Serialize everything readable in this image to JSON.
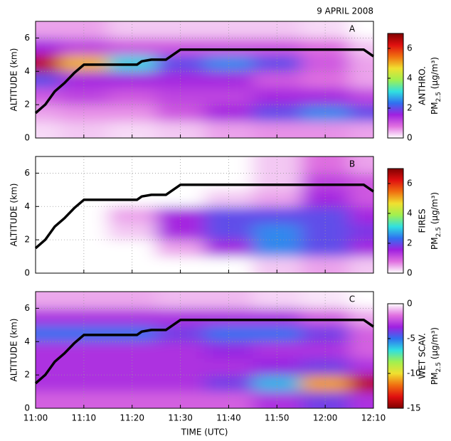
{
  "chart_data": [
    {
      "type": "heatmap",
      "title": "9 APRIL 2008",
      "panel_label": "A",
      "ylabel": "ALTITUDE (km)",
      "colorbar_title": "ANTHRO.",
      "colorbar_unit": [
        "PM",
        "2.5",
        " (μg/m³)"
      ],
      "clim": [
        0,
        7
      ],
      "cticks": [
        0,
        2,
        4,
        6
      ],
      "colormap": [
        "#ffffff",
        "#e070e0",
        "#a020e0",
        "#3070f0",
        "#30e0e0",
        "#a0f050",
        "#f0e030",
        "#f07010",
        "#e01010",
        "#800000"
      ],
      "xlim": [
        "11:00",
        "12:10"
      ],
      "xticks": [
        "11:00",
        "11:10",
        "11:20",
        "11:30",
        "11:40",
        "11:50",
        "12:00",
        "12:10"
      ],
      "ylim": [
        0,
        7
      ],
      "yticks": [
        0,
        2,
        4,
        6
      ],
      "grid": true,
      "z_times": [
        "11:00",
        "11:10",
        "11:20",
        "11:30",
        "11:40",
        "11:50",
        "12:00",
        "12:10"
      ],
      "z_altitudes": [
        0.5,
        1.5,
        2.5,
        3.5,
        4.5,
        5.5,
        6.5
      ],
      "z": [
        [
          0.2,
          0.3,
          0.2,
          0.3,
          0.5,
          0.6,
          0.6,
          0.5
        ],
        [
          0.5,
          0.6,
          0.6,
          1,
          1.5,
          2,
          2.5,
          2
        ],
        [
          1,
          1.2,
          1,
          1.2,
          1.2,
          1.5,
          1.5,
          1.2
        ],
        [
          2,
          1.5,
          1.5,
          1.5,
          1.5,
          1,
          0.8,
          0.5
        ],
        [
          6.5,
          5,
          3,
          2,
          2.5,
          2,
          1,
          0.5
        ],
        [
          1.5,
          1.2,
          1,
          1,
          1,
          1,
          0.8,
          0.3
        ],
        [
          0.5,
          0.5,
          0.3,
          0.3,
          0.3,
          0.3,
          0.2,
          0
        ]
      ],
      "x": [
        "11:00",
        "11:02",
        "11:04",
        "11:06",
        "11:08",
        "11:10",
        "11:21",
        "11:22",
        "11:24",
        "11:27",
        "11:30",
        "12:08",
        "12:10"
      ],
      "values": [
        1.5,
        2.0,
        2.8,
        3.3,
        3.9,
        4.4,
        4.4,
        4.6,
        4.7,
        4.7,
        5.3,
        5.3,
        4.9
      ],
      "color": "#000000"
    },
    {
      "type": "heatmap",
      "panel_label": "B",
      "ylabel": "ALTITUDE (km)",
      "colorbar_title": "FIRES",
      "colorbar_unit": [
        "PM",
        "2.5",
        " (μg/m³)"
      ],
      "clim": [
        0,
        7
      ],
      "cticks": [
        0,
        2,
        4,
        6
      ],
      "colormap": [
        "#ffffff",
        "#e070e0",
        "#a020e0",
        "#3070f0",
        "#30e0e0",
        "#a0f050",
        "#f0e030",
        "#f07010",
        "#e01010",
        "#800000"
      ],
      "xlim": [
        "11:00",
        "12:10"
      ],
      "xticks": [
        "11:00",
        "11:10",
        "11:20",
        "11:30",
        "11:40",
        "11:50",
        "12:00",
        "12:10"
      ],
      "ylim": [
        0,
        7
      ],
      "yticks": [
        0,
        2,
        4,
        6
      ],
      "grid": true,
      "z_times": [
        "11:00",
        "11:10",
        "11:20",
        "11:30",
        "11:40",
        "11:50",
        "12:00",
        "12:10"
      ],
      "z_altitudes": [
        0.5,
        1.5,
        2.5,
        3.5,
        4.5,
        5.5,
        6.5
      ],
      "z": [
        [
          0,
          0,
          0,
          0,
          0,
          0.3,
          0.5,
          0.3
        ],
        [
          0,
          0,
          0,
          0.5,
          1.5,
          2.5,
          2,
          1.5
        ],
        [
          0,
          0,
          0.3,
          1.5,
          2,
          2.5,
          2,
          1.8
        ],
        [
          0,
          0,
          0.5,
          1.5,
          2,
          2,
          2,
          1.5
        ],
        [
          0,
          0,
          0,
          0,
          0.3,
          0.5,
          1.5,
          1
        ],
        [
          0,
          0,
          0,
          0,
          0,
          0.3,
          1.2,
          1
        ],
        [
          0,
          0,
          0,
          0,
          0,
          0.3,
          0.8,
          0.5
        ]
      ],
      "x": [
        "11:00",
        "11:02",
        "11:04",
        "11:06",
        "11:08",
        "11:10",
        "11:21",
        "11:22",
        "11:24",
        "11:27",
        "11:30",
        "12:08",
        "12:10"
      ],
      "values": [
        1.5,
        2.0,
        2.8,
        3.3,
        3.9,
        4.4,
        4.4,
        4.6,
        4.7,
        4.7,
        5.3,
        5.3,
        4.9
      ],
      "color": "#000000"
    },
    {
      "type": "heatmap",
      "panel_label": "C",
      "ylabel": "ALTITUDE (km)",
      "xlabel": "TIME (UTC)",
      "colorbar_title": "WET SCAV.",
      "colorbar_unit": [
        "PM",
        "2.5",
        " (μg/m³)"
      ],
      "clim": [
        -15,
        0
      ],
      "cticks": [
        -15,
        -10,
        -5,
        0
      ],
      "colormap": [
        "#800000",
        "#e01010",
        "#f07010",
        "#f0e030",
        "#a0f050",
        "#30e0e0",
        "#3070f0",
        "#a020e0",
        "#e070e0",
        "#ffffff"
      ],
      "xlim": [
        "11:00",
        "12:10"
      ],
      "xticks": [
        "11:00",
        "11:10",
        "11:20",
        "11:30",
        "11:40",
        "11:50",
        "12:00",
        "12:10"
      ],
      "ylim": [
        0,
        7
      ],
      "yticks": [
        0,
        2,
        4,
        6
      ],
      "grid": true,
      "z_times": [
        "11:00",
        "11:10",
        "11:20",
        "11:30",
        "11:40",
        "11:50",
        "12:00",
        "12:10"
      ],
      "z_altitudes": [
        0.5,
        1.5,
        2.5,
        3.5,
        4.5,
        5.5,
        6.5
      ],
      "z": [
        [
          -2,
          -2,
          -2,
          -2,
          -2,
          -3,
          -4,
          -3
        ],
        [
          -3,
          -3,
          -3,
          -3,
          -4,
          -6,
          -11,
          -14
        ],
        [
          -3,
          -3,
          -3,
          -3,
          -3,
          -3.5,
          -4,
          -3
        ],
        [
          -3,
          -3,
          -3,
          -3,
          -3.5,
          -3,
          -3,
          -2
        ],
        [
          -5,
          -5,
          -5,
          -4,
          -5,
          -5,
          -4,
          -2
        ],
        [
          -3,
          -3,
          -3,
          -3,
          -3,
          -3,
          -2,
          -1
        ],
        [
          -1,
          -1,
          -1,
          -0.8,
          -0.8,
          -0.5,
          -0.3,
          0
        ]
      ],
      "x": [
        "11:00",
        "11:02",
        "11:04",
        "11:06",
        "11:08",
        "11:10",
        "11:21",
        "11:22",
        "11:24",
        "11:27",
        "11:30",
        "12:08",
        "12:10"
      ],
      "values": [
        1.5,
        2.0,
        2.8,
        3.3,
        3.9,
        4.4,
        4.4,
        4.6,
        4.7,
        4.7,
        5.3,
        5.3,
        4.9
      ],
      "color": "#000000"
    }
  ]
}
